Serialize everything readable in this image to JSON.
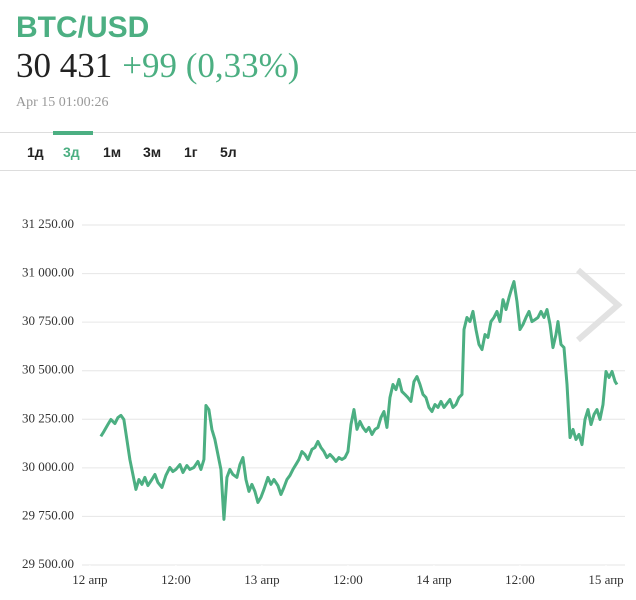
{
  "header": {
    "symbol": "BTC/USD",
    "price": "30 431",
    "change": "+99 (0,33%)",
    "timestamp": "Apr 15 01:00:26"
  },
  "tabs": [
    "1д",
    "3д",
    "1м",
    "3м",
    "1г",
    "5л"
  ],
  "active_tab": 1,
  "chart_data": {
    "type": "line",
    "color": "#4caf82",
    "grid": true,
    "xlim": [
      -1.1,
      74.65
    ],
    "ylim": [
      29500,
      31250
    ],
    "xticks": [
      {
        "value": 0,
        "label": "12 апр"
      },
      {
        "value": 12,
        "label": "12:00"
      },
      {
        "value": 24,
        "label": "13 апр"
      },
      {
        "value": 36,
        "label": "12:00"
      },
      {
        "value": 48,
        "label": "14 апр"
      },
      {
        "value": 60,
        "label": "12:00"
      },
      {
        "value": 72,
        "label": "15 апр"
      }
    ],
    "yticks": [
      {
        "value": 29500,
        "label": "29 500.00"
      },
      {
        "value": 29750,
        "label": "29 750.00"
      },
      {
        "value": 30000,
        "label": "30 000.00"
      },
      {
        "value": 30250,
        "label": "30 250.00"
      },
      {
        "value": 30500,
        "label": "30 500.00"
      },
      {
        "value": 30750,
        "label": "30 750.00"
      },
      {
        "value": 31000,
        "label": "31 000.00"
      },
      {
        "value": 31250,
        "label": "31 250.00"
      }
    ],
    "x": [
      1.53,
      1.95,
      2.51,
      2.93,
      3.49,
      3.91,
      4.33,
      4.74,
      5.16,
      5.58,
      6.0,
      6.42,
      6.84,
      7.26,
      7.67,
      8.09,
      8.65,
      9.07,
      9.49,
      10.05,
      10.6,
      11.16,
      11.58,
      12.0,
      12.56,
      12.98,
      13.53,
      13.95,
      14.51,
      15.07,
      15.49,
      15.91,
      16.19,
      16.6,
      17.02,
      17.44,
      17.86,
      18.28,
      18.7,
      19.12,
      19.53,
      19.95,
      20.51,
      20.93,
      21.35,
      21.77,
      22.19,
      22.6,
      23.02,
      23.44,
      23.86,
      24.28,
      24.84,
      25.26,
      25.67,
      26.23,
      26.65,
      27.07,
      27.49,
      27.91,
      28.33,
      28.74,
      29.16,
      29.58,
      30.0,
      30.42,
      30.98,
      31.4,
      31.81,
      32.23,
      32.65,
      33.07,
      33.49,
      33.91,
      34.33,
      34.74,
      35.16,
      35.58,
      36.0,
      36.42,
      36.84,
      37.26,
      37.67,
      38.09,
      38.51,
      38.93,
      39.35,
      39.77,
      40.19,
      40.6,
      41.02,
      41.44,
      41.86,
      42.28,
      42.7,
      43.12,
      43.53,
      43.95,
      44.37,
      44.79,
      45.21,
      45.63,
      46.05,
      46.47,
      46.88,
      47.3,
      47.72,
      48.14,
      48.56,
      48.98,
      49.4,
      49.81,
      50.23,
      50.65,
      51.07,
      51.49,
      51.91,
      52.19,
      52.6,
      53.02,
      53.44,
      53.86,
      54.28,
      54.7,
      55.12,
      55.53,
      55.95,
      56.37,
      56.79,
      57.21,
      57.63,
      58.05,
      58.47,
      58.88,
      59.16,
      59.58,
      60.0,
      60.42,
      60.84,
      61.26,
      61.67,
      62.09,
      62.51,
      62.93,
      63.35,
      63.77,
      64.19,
      64.6,
      65.02,
      65.3,
      65.72,
      66.14,
      66.56,
      66.98,
      67.4,
      67.81,
      68.23,
      68.65,
      69.07,
      69.49,
      69.91,
      70.33,
      70.74,
      71.16,
      71.58,
      72.0,
      72.42,
      72.84,
      73.26,
      73.53
    ],
    "values": [
      30162,
      30187,
      30223,
      30249,
      30228,
      30259,
      30270,
      30249,
      30146,
      30043,
      29966,
      29889,
      29940,
      29915,
      29951,
      29909,
      29940,
      29966,
      29925,
      29899,
      29961,
      30002,
      29981,
      29992,
      30017,
      29976,
      30012,
      29992,
      30002,
      30033,
      29992,
      30043,
      30321,
      30300,
      30198,
      30146,
      30069,
      29992,
      29735,
      29951,
      29992,
      29966,
      29951,
      30017,
      30053,
      29940,
      29879,
      29915,
      29879,
      29822,
      29848,
      29889,
      29951,
      29915,
      29940,
      29909,
      29863,
      29899,
      29940,
      29961,
      29992,
      30017,
      30043,
      30084,
      30069,
      30043,
      30095,
      30105,
      30136,
      30105,
      30084,
      30053,
      30069,
      30053,
      30033,
      30053,
      30043,
      30053,
      30084,
      30223,
      30300,
      30198,
      30239,
      30208,
      30187,
      30208,
      30172,
      30198,
      30208,
      30259,
      30290,
      30208,
      30362,
      30429,
      30403,
      30455,
      30393,
      30378,
      30362,
      30342,
      30444,
      30470,
      30429,
      30378,
      30362,
      30311,
      30290,
      30326,
      30311,
      30342,
      30311,
      30331,
      30352,
      30311,
      30326,
      30362,
      30378,
      30712,
      30774,
      30753,
      30805,
      30712,
      30635,
      30609,
      30686,
      30671,
      30753,
      30774,
      30805,
      30753,
      30866,
      30815,
      30877,
      30928,
      30959,
      30856,
      30712,
      30738,
      30774,
      30805,
      30753,
      30763,
      30774,
      30805,
      30774,
      30815,
      30738,
      30619,
      30686,
      30753,
      30635,
      30619,
      30429,
      30156,
      30198,
      30146,
      30172,
      30120,
      30249,
      30300,
      30223,
      30275,
      30300,
      30249,
      30326,
      30496,
      30465,
      30496,
      30445,
      30429
    ]
  }
}
